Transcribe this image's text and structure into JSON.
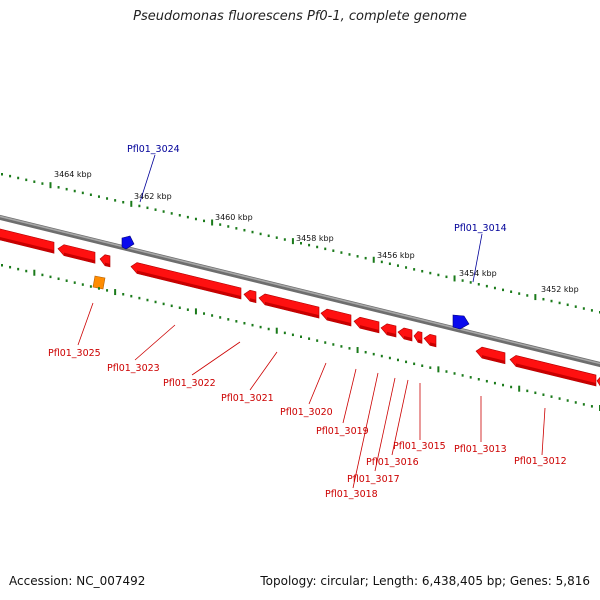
{
  "title": "Pseudomonas fluorescens Pf0-1, complete genome",
  "accession": "Accession: NC_007492",
  "summary": "Topology: circular; Length: 6,438,405 bp; Genes: 5,816",
  "colors": {
    "forward_gene": "#ff0000",
    "forward_gene_highlight": "#0000ff",
    "reverse_gene": "#ff0000",
    "reverse_gene_highlight": "#ff8c00",
    "backbone": "#888888",
    "tick": "#1a7a1a",
    "label_blue": "#000099",
    "label_red": "#cc0000"
  },
  "kbp_labels": [
    "3464 kbp",
    "3462 kbp",
    "3460 kbp",
    "3458 kbp",
    "3456 kbp",
    "3454 kbp",
    "3452 kbp"
  ],
  "upper_genes": [
    "Pfl01_3024",
    "Pfl01_3014"
  ],
  "lower_genes": [
    "Pfl01_3025",
    "Pfl01_3023",
    "Pfl01_3022",
    "Pfl01_3021",
    "Pfl01_3020",
    "Pfl01_3019",
    "Pfl01_3018",
    "Pfl01_3017",
    "Pfl01_3016",
    "Pfl01_3015",
    "Pfl01_3013",
    "Pfl01_3012"
  ]
}
